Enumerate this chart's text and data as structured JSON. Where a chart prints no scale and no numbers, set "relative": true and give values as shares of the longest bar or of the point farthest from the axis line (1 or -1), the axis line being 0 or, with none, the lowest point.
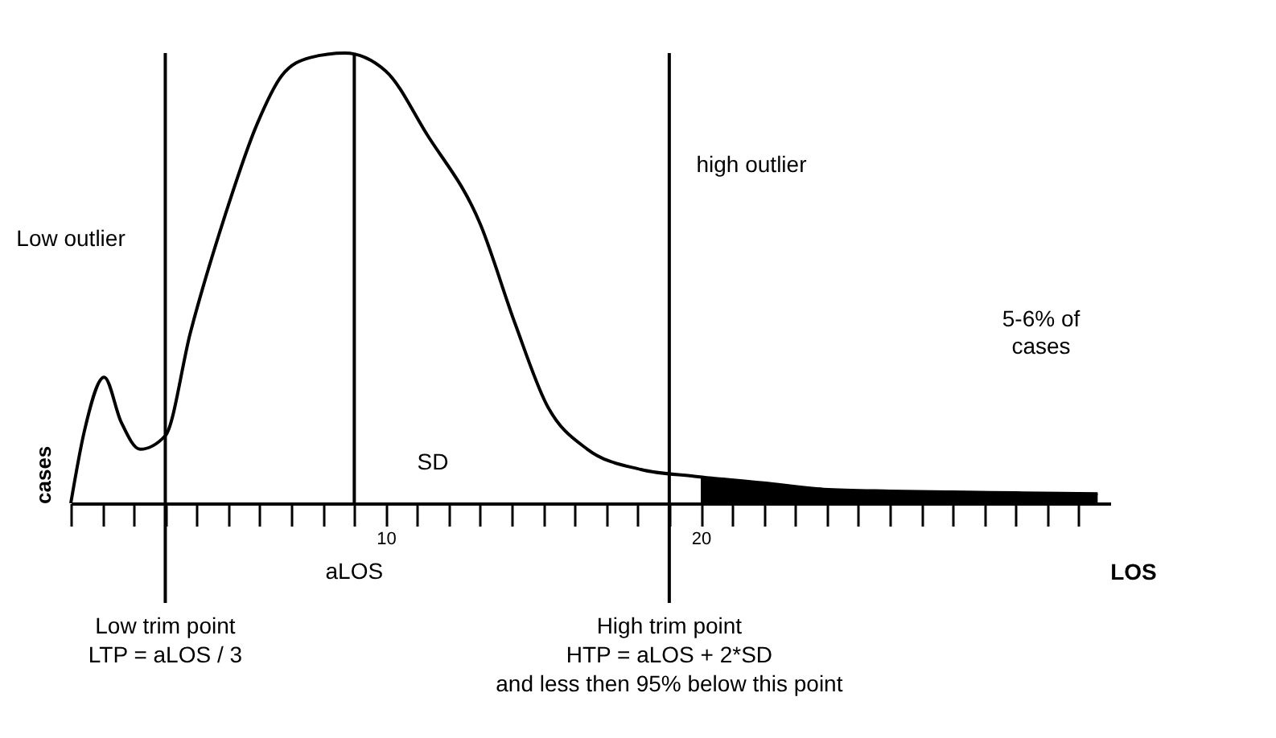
{
  "chart_data": {
    "type": "line",
    "relative": true,
    "xlabel": "LOS",
    "ylabel": "cases",
    "xlim": [
      0,
      33
    ],
    "xticks": [
      {
        "value": 0,
        "label": null
      },
      {
        "value": 1,
        "label": null
      },
      {
        "value": 2,
        "label": null
      },
      {
        "value": 3,
        "label": null
      },
      {
        "value": 4,
        "label": null
      },
      {
        "value": 5,
        "label": null
      },
      {
        "value": 6,
        "label": null
      },
      {
        "value": 7,
        "label": null
      },
      {
        "value": 8,
        "label": null
      },
      {
        "value": 9,
        "label": null
      },
      10,
      {
        "value": 11,
        "label": null
      },
      {
        "value": 12,
        "label": null
      },
      {
        "value": 13,
        "label": null
      },
      {
        "value": 14,
        "label": null
      },
      {
        "value": 15,
        "label": null
      },
      {
        "value": 16,
        "label": null
      },
      {
        "value": 17,
        "label": null
      },
      {
        "value": 18,
        "label": null
      },
      {
        "value": 19,
        "label": null
      },
      20,
      {
        "value": 21,
        "label": null
      },
      {
        "value": 22,
        "label": null
      },
      {
        "value": 23,
        "label": null
      },
      {
        "value": 24,
        "label": null
      },
      {
        "value": 25,
        "label": null
      },
      {
        "value": 26,
        "label": null
      },
      {
        "value": 27,
        "label": null
      },
      {
        "value": 28,
        "label": null
      },
      {
        "value": 29,
        "label": null
      },
      {
        "value": 30,
        "label": null
      },
      {
        "value": 31,
        "label": null
      },
      {
        "value": 32,
        "label": null
      }
    ],
    "series": [
      {
        "type": "area",
        "color": "#000000",
        "x": [
          20,
          22,
          23.9,
          26,
          28,
          30,
          32.6
        ],
        "values": [
          0.057,
          0.045,
          0.033,
          0.028,
          0.026,
          0.024,
          0.022
        ]
      },
      {
        "color": "#000000",
        "x": [
          0,
          0.43,
          1.06,
          1.6,
          2.2,
          3,
          3.8,
          4.9,
          5.9,
          6.7,
          7.6,
          8.7,
          10,
          11.3,
          13,
          14.1,
          15.1,
          16.4,
          18.1,
          19.8,
          22,
          23.9,
          26,
          28,
          30,
          32.6
        ],
        "values": [
          0,
          0.16,
          0.28,
          0.18,
          0.12,
          0.15,
          0.38,
          0.64,
          0.84,
          0.95,
          0.99,
          1,
          0.96,
          0.82,
          0.62,
          0.4,
          0.22,
          0.12,
          0.075,
          0.06,
          0.045,
          0.031,
          0.027,
          0.025,
          0.023,
          0.021
        ]
      }
    ],
    "ref_lines": [
      {
        "axis": "x",
        "value": 3,
        "label": "Low trim point\nLTP = aLOS / 3"
      },
      {
        "axis": "x",
        "value": 9,
        "label": "aLOS"
      },
      {
        "axis": "x",
        "value": 19,
        "label": "High trim point\nHTP = aLOS + 2*SD\nand less then 95% below this point"
      }
    ],
    "annotations": [
      "Low outlier",
      "high outlier",
      "SD",
      "5-6% of\ncases"
    ],
    "grid": false,
    "marker": "none",
    "line_style": "solid"
  }
}
